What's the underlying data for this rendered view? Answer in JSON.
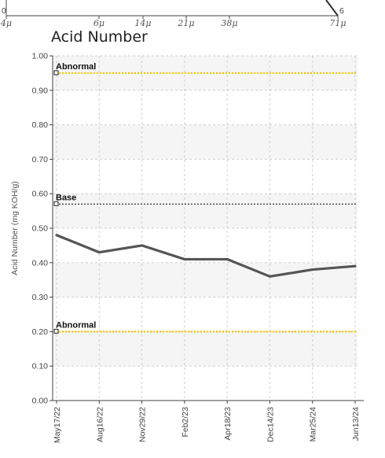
{
  "top_strip": {
    "left_value": "0",
    "right_value": "6",
    "ticks": [
      "4μ",
      "6μ",
      "14μ",
      "21μ",
      "38μ",
      "71μ"
    ]
  },
  "chart_data": {
    "type": "line",
    "title": "Acid Number",
    "ylabel": "Acid Number (mg KOH/g)",
    "xlabel": "",
    "ylim": [
      0,
      1.0
    ],
    "ytick_labels": [
      "0.00",
      "0.10",
      "0.20",
      "0.30",
      "0.40",
      "0.50",
      "0.60",
      "0.70",
      "0.80",
      "0.90",
      "1.00"
    ],
    "categories": [
      "May17/22",
      "Aug16/22",
      "Nov29/22",
      "Feb2/23",
      "Apr18/23",
      "Dec14/23",
      "Mar25/24",
      "Jun13/24"
    ],
    "series": [
      {
        "values": [
          0.48,
          0.43,
          0.45,
          0.41,
          0.41,
          0.36,
          0.38,
          0.39
        ],
        "color": "#555555"
      }
    ],
    "reference_lines": [
      {
        "label": "Abnormal",
        "value": 0.95,
        "color": "#f2c400",
        "style": "dotted"
      },
      {
        "label": "Base",
        "value": 0.57,
        "color": "#333333",
        "style": "dotted"
      },
      {
        "label": "Abnormal",
        "value": 0.2,
        "color": "#f2c400",
        "style": "dotted"
      }
    ],
    "grid": true,
    "band_colors": [
      "#ffffff",
      "#f5f5f5"
    ]
  }
}
